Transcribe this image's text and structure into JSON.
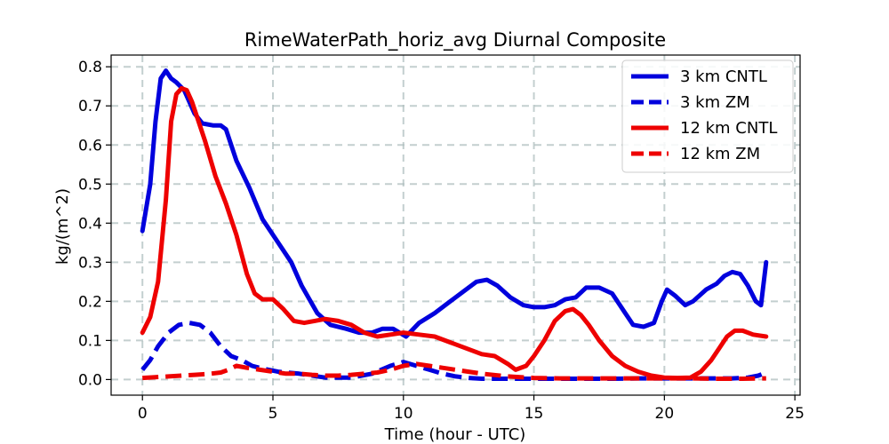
{
  "chart_data": {
    "type": "line",
    "title": "RimeWaterPath_horiz_avg Diurnal Composite",
    "xlabel": "Time (hour - UTC)",
    "ylabel": "kg/(m^2)",
    "xlim": [
      -1.2,
      25.2
    ],
    "ylim": [
      -0.04,
      0.83
    ],
    "xticks": [
      0,
      5,
      10,
      15,
      20,
      25
    ],
    "yticks": [
      0.0,
      0.1,
      0.2,
      0.3,
      0.4,
      0.5,
      0.6,
      0.7,
      0.8
    ],
    "xtick_labels": [
      "0",
      "5",
      "10",
      "15",
      "20",
      "25"
    ],
    "ytick_labels": [
      "0.0",
      "0.1",
      "0.2",
      "0.3",
      "0.4",
      "0.5",
      "0.6",
      "0.7",
      "0.8"
    ],
    "grid": true,
    "legend_position": "top-right",
    "series": [
      {
        "name": "3 km CNTL",
        "color": "#0000dd",
        "dash": "solid",
        "x": [
          0.0,
          0.3,
          0.5,
          0.7,
          0.9,
          1.1,
          1.3,
          1.6,
          2.0,
          2.3,
          2.7,
          3.0,
          3.2,
          3.6,
          4.1,
          4.6,
          5.2,
          5.7,
          6.1,
          6.7,
          7.2,
          7.8,
          8.3,
          8.8,
          9.2,
          9.6,
          10.1,
          10.6,
          11.2,
          11.8,
          12.3,
          12.8,
          13.2,
          13.6,
          14.1,
          14.6,
          15.0,
          15.4,
          15.8,
          16.2,
          16.6,
          17.0,
          17.5,
          18.0,
          18.5,
          18.8,
          19.2,
          19.6,
          19.9,
          20.1,
          20.4,
          20.8,
          21.1,
          21.6,
          22.0,
          22.3,
          22.6,
          22.9,
          23.2,
          23.5,
          23.7,
          23.9
        ],
        "y": [
          0.38,
          0.5,
          0.66,
          0.77,
          0.79,
          0.77,
          0.76,
          0.74,
          0.68,
          0.655,
          0.65,
          0.65,
          0.64,
          0.56,
          0.49,
          0.41,
          0.35,
          0.3,
          0.24,
          0.17,
          0.14,
          0.13,
          0.12,
          0.12,
          0.13,
          0.13,
          0.11,
          0.145,
          0.17,
          0.2,
          0.225,
          0.25,
          0.255,
          0.24,
          0.21,
          0.19,
          0.185,
          0.185,
          0.19,
          0.205,
          0.21,
          0.235,
          0.235,
          0.22,
          0.17,
          0.14,
          0.135,
          0.145,
          0.2,
          0.23,
          0.215,
          0.19,
          0.2,
          0.23,
          0.245,
          0.265,
          0.275,
          0.27,
          0.24,
          0.2,
          0.19,
          0.3
        ]
      },
      {
        "name": "3 km ZM",
        "color": "#0000dd",
        "dash": "dashed",
        "x": [
          0.0,
          0.3,
          0.6,
          1.0,
          1.4,
          1.8,
          2.2,
          2.6,
          3.0,
          3.4,
          3.8,
          4.2,
          4.6,
          5.2,
          6.0,
          7.0,
          8.0,
          8.8,
          9.5,
          10.0,
          10.5,
          11.0,
          11.5,
          12.0,
          12.5,
          13.0,
          14.0,
          15.0,
          16.0,
          17.0,
          18.0,
          19.0,
          20.0,
          21.0,
          22.0,
          22.6,
          23.2,
          23.6,
          23.9
        ],
        "y": [
          0.025,
          0.05,
          0.085,
          0.12,
          0.14,
          0.145,
          0.14,
          0.12,
          0.085,
          0.06,
          0.05,
          0.035,
          0.028,
          0.02,
          0.015,
          0.005,
          0.005,
          0.015,
          0.035,
          0.045,
          0.035,
          0.025,
          0.015,
          0.008,
          0.004,
          0.002,
          0.002,
          0.002,
          0.002,
          0.002,
          0.002,
          0.003,
          0.003,
          0.003,
          0.003,
          0.003,
          0.005,
          0.01,
          0.018
        ]
      },
      {
        "name": "12 km CNTL",
        "color": "#ee0000",
        "dash": "solid",
        "x": [
          0.0,
          0.3,
          0.6,
          0.9,
          1.1,
          1.3,
          1.5,
          1.7,
          1.9,
          2.1,
          2.4,
          2.8,
          3.2,
          3.6,
          4.0,
          4.3,
          4.6,
          5.0,
          5.4,
          5.8,
          6.2,
          6.6,
          7.0,
          7.5,
          8.0,
          8.5,
          9.0,
          9.5,
          10.0,
          10.6,
          11.2,
          11.8,
          12.4,
          13.0,
          13.5,
          14.0,
          14.3,
          14.7,
          15.0,
          15.4,
          15.8,
          16.2,
          16.5,
          16.8,
          17.1,
          17.5,
          18.0,
          18.5,
          19.0,
          19.5,
          20.0,
          20.5,
          21.0,
          21.4,
          21.8,
          22.1,
          22.4,
          22.7,
          23.0,
          23.4,
          23.9
        ],
        "y": [
          0.12,
          0.16,
          0.25,
          0.46,
          0.66,
          0.73,
          0.745,
          0.74,
          0.71,
          0.67,
          0.61,
          0.52,
          0.45,
          0.37,
          0.27,
          0.22,
          0.205,
          0.205,
          0.18,
          0.15,
          0.145,
          0.15,
          0.155,
          0.15,
          0.14,
          0.12,
          0.11,
          0.115,
          0.12,
          0.115,
          0.11,
          0.095,
          0.08,
          0.065,
          0.06,
          0.04,
          0.025,
          0.035,
          0.06,
          0.1,
          0.15,
          0.175,
          0.18,
          0.165,
          0.14,
          0.1,
          0.06,
          0.035,
          0.02,
          0.01,
          0.005,
          0.004,
          0.005,
          0.02,
          0.05,
          0.08,
          0.11,
          0.125,
          0.125,
          0.115,
          0.11
        ]
      },
      {
        "name": "12 km ZM",
        "color": "#ee0000",
        "dash": "dashed",
        "x": [
          0.0,
          0.5,
          1.0,
          1.5,
          2.0,
          2.5,
          3.0,
          3.3,
          3.6,
          4.0,
          4.5,
          5.0,
          5.5,
          6.0,
          6.5,
          7.0,
          7.5,
          8.0,
          8.5,
          9.0,
          9.5,
          10.0,
          10.5,
          11.0,
          11.5,
          12.0,
          12.5,
          13.0,
          14.0,
          15.0,
          16.0,
          17.0,
          18.0,
          19.0,
          20.0,
          21.0,
          22.0,
          23.0,
          23.9
        ],
        "y": [
          0.004,
          0.006,
          0.008,
          0.01,
          0.012,
          0.014,
          0.018,
          0.025,
          0.035,
          0.03,
          0.025,
          0.02,
          0.015,
          0.015,
          0.012,
          0.01,
          0.01,
          0.012,
          0.015,
          0.018,
          0.025,
          0.035,
          0.04,
          0.035,
          0.03,
          0.025,
          0.02,
          0.015,
          0.008,
          0.004,
          0.003,
          0.003,
          0.003,
          0.003,
          0.003,
          0.003,
          0.002,
          0.002,
          0.003
        ]
      }
    ]
  }
}
